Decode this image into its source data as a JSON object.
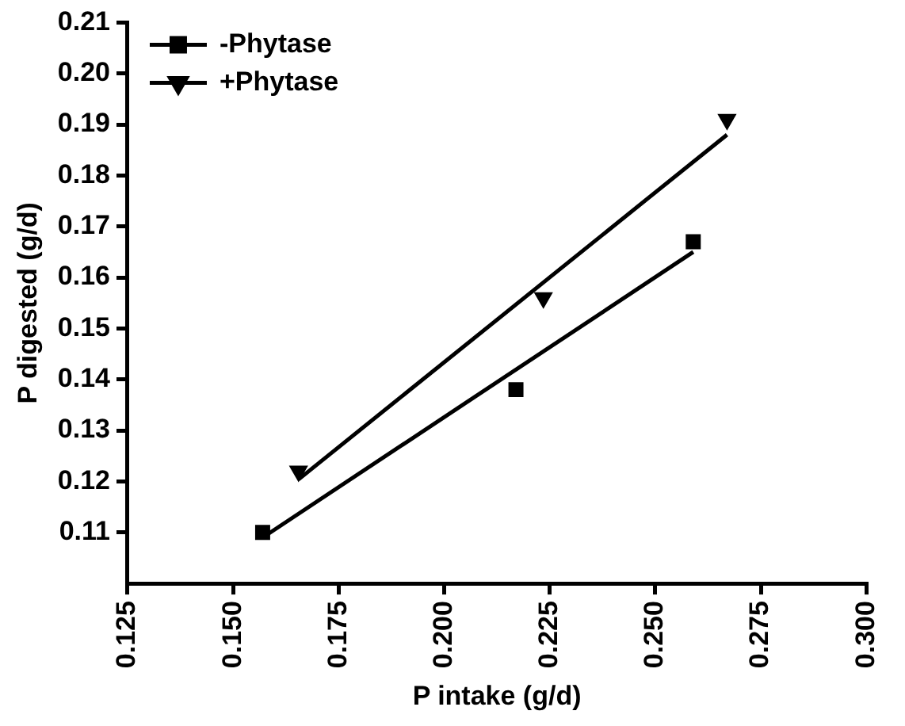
{
  "chart_data": {
    "type": "scatter",
    "xlabel": "P intake (g/d)",
    "ylabel": "P digested (g/d)",
    "xlim": [
      0.125,
      0.3
    ],
    "ylim": [
      0.1,
      0.21
    ],
    "xticks": [
      {
        "value": 0.125,
        "label": "0.125"
      },
      {
        "value": 0.15,
        "label": "0.150"
      },
      {
        "value": 0.175,
        "label": "0.175"
      },
      {
        "value": 0.2,
        "label": "0.200"
      },
      {
        "value": 0.225,
        "label": "0.225"
      },
      {
        "value": 0.25,
        "label": "0.250"
      },
      {
        "value": 0.275,
        "label": "0.275"
      },
      {
        "value": 0.3,
        "label": "0.300"
      }
    ],
    "yticks": [
      0.11,
      0.12,
      0.13,
      0.14,
      0.15,
      0.16,
      0.17,
      0.18,
      0.19,
      {
        "value": 0.2,
        "label": "0.20"
      },
      0.21
    ],
    "grid": false,
    "legend": "top left",
    "series": [
      {
        "name": "-Phytase",
        "marker": "square",
        "color": "#000000",
        "x": [
          0.157,
          0.217,
          0.259
        ],
        "values": [
          0.11,
          0.138,
          0.167
        ]
      },
      {
        "name": "+Phytase",
        "marker": "triangle",
        "color": "#000000",
        "x": [
          0.1655,
          0.2235,
          0.267
        ],
        "values": [
          0.122,
          0.156,
          0.191
        ]
      },
      {
        "type": "line",
        "marker": "none",
        "color": "#000000",
        "x": [
          0.157,
          0.259
        ],
        "values": [
          0.109,
          0.165
        ]
      },
      {
        "type": "line",
        "marker": "none",
        "color": "#000000",
        "x": [
          0.1655,
          0.267
        ],
        "values": [
          0.1204,
          0.188
        ]
      }
    ]
  }
}
